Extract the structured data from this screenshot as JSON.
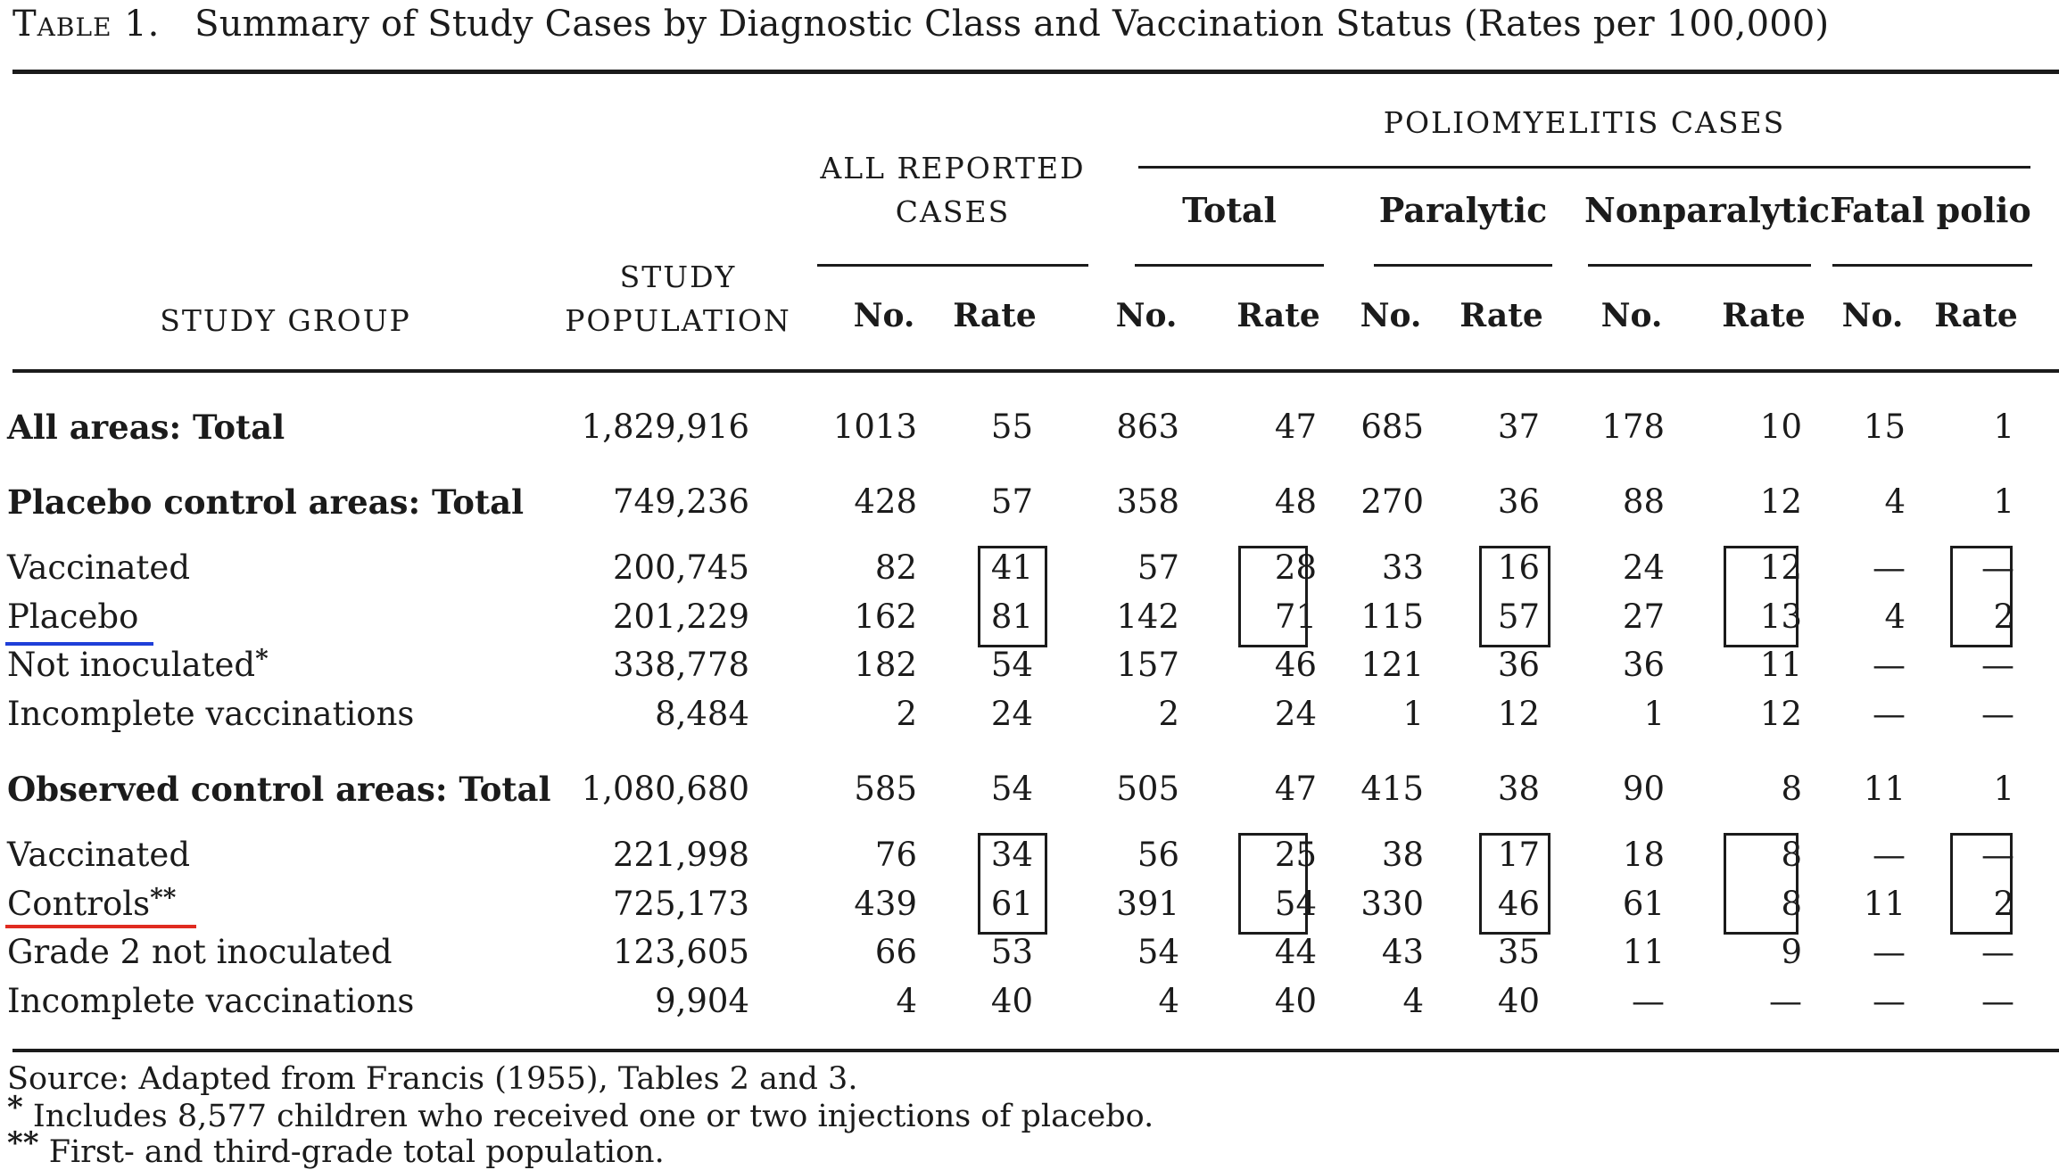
{
  "title": {
    "label": "Table 1.",
    "text": "Summary of Study Cases by Diagnostic Class and Vaccination Status (Rates per 100,000)"
  },
  "headers": {
    "study_group": "STUDY GROUP",
    "study_population": [
      "STUDY",
      "POPULATION"
    ],
    "all_reported": [
      "ALL REPORTED",
      "CASES"
    ],
    "polio_cases": "POLIOMYELITIS CASES",
    "subgroups": [
      "Total",
      "Paralytic",
      "Nonparalytic",
      "Fatal polio"
    ],
    "no": "No.",
    "rate": "Rate"
  },
  "rows": [
    {
      "label": "All areas: Total",
      "bold": true,
      "pop": "1,829,916",
      "vals": [
        "1013",
        "55",
        "863",
        "47",
        "685",
        "37",
        "178",
        "10",
        "15",
        "1"
      ]
    },
    {
      "label": "Placebo control areas: Total",
      "bold": true,
      "pop": "749,236",
      "vals": [
        "428",
        "57",
        "358",
        "48",
        "270",
        "36",
        "88",
        "12",
        "4",
        "1"
      ]
    },
    {
      "label": "Vaccinated",
      "pop": "200,745",
      "vals": [
        "82",
        "41",
        "57",
        "28",
        "33",
        "16",
        "24",
        "12",
        "—",
        "—"
      ]
    },
    {
      "label": "Placebo",
      "pop": "201,229",
      "vals": [
        "162",
        "81",
        "142",
        "71",
        "115",
        "57",
        "27",
        "13",
        "4",
        "2"
      ]
    },
    {
      "label": "Not inoculated",
      "mark": "*",
      "pop": "338,778",
      "vals": [
        "182",
        "54",
        "157",
        "46",
        "121",
        "36",
        "36",
        "11",
        "—",
        "—"
      ]
    },
    {
      "label": "Incomplete vaccinations",
      "pop": "8,484",
      "vals": [
        "2",
        "24",
        "2",
        "24",
        "1",
        "12",
        "1",
        "12",
        "—",
        "—"
      ]
    },
    {
      "label": "Observed control areas: Total",
      "bold": true,
      "pop": "1,080,680",
      "vals": [
        "585",
        "54",
        "505",
        "47",
        "415",
        "38",
        "90",
        "8",
        "11",
        "1"
      ]
    },
    {
      "label": "Vaccinated",
      "pop": "221,998",
      "vals": [
        "76",
        "34",
        "56",
        "25",
        "38",
        "17",
        "18",
        "8",
        "—",
        "—"
      ]
    },
    {
      "label": "Controls",
      "mark": "**",
      "pop": "725,173",
      "vals": [
        "439",
        "61",
        "391",
        "54",
        "330",
        "46",
        "61",
        "8",
        "11",
        "2"
      ]
    },
    {
      "label": "Grade 2 not inoculated",
      "pop": "123,605",
      "vals": [
        "66",
        "53",
        "54",
        "44",
        "43",
        "35",
        "11",
        "9",
        "—",
        "—"
      ]
    },
    {
      "label": "Incomplete vaccinations",
      "pop": "9,904",
      "vals": [
        "4",
        "40",
        "4",
        "40",
        "4",
        "40",
        "—",
        "—",
        "—",
        "—"
      ]
    }
  ],
  "footnotes": {
    "source": "Source: Adapted from Francis (1955), Tables 2 and 3.",
    "star1_mark": "*",
    "star1": "Includes 8,577 children who received one or two injections of placebo.",
    "star2_mark": "**",
    "star2": "First- and third-grade total population."
  },
  "annotations": {
    "placebo_underline_color": "#1f3fd8",
    "controls_underline_color": "#e02b20"
  }
}
